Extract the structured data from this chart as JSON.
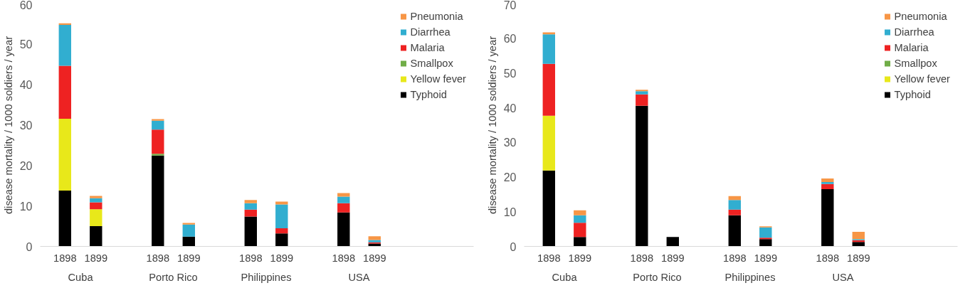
{
  "chart_data": [
    {
      "type": "bar",
      "stacked": true,
      "ylabel": "disease mortality / 1000 soldiers / year",
      "categories": [
        "1898",
        "1899",
        "1898",
        "1899",
        "1898",
        "1899",
        "1898",
        "1899"
      ],
      "annotations": [
        "Cuba",
        "Porto Rico",
        "Philippines",
        "USA"
      ],
      "ylim": [
        0,
        60
      ],
      "yticks": [
        0,
        10,
        20,
        30,
        40,
        50,
        60
      ],
      "legend": "top right",
      "series": [
        {
          "name": "Typhoid",
          "color": "#000000",
          "values": [
            13.8,
            5.0,
            22.5,
            2.4,
            7.4,
            3.2,
            8.4,
            0.7
          ]
        },
        {
          "name": "Yellow fever",
          "color": "#e8e81a",
          "values": [
            17.8,
            4.2,
            0,
            0,
            0,
            0,
            0,
            0
          ]
        },
        {
          "name": "Smallpox",
          "color": "#70ad47",
          "values": [
            0,
            0,
            0.4,
            0,
            0,
            0,
            0,
            0
          ]
        },
        {
          "name": "Malaria",
          "color": "#ee2222",
          "values": [
            13.1,
            1.7,
            6.0,
            0,
            1.7,
            1.3,
            2.3,
            0.3
          ]
        },
        {
          "name": "Diarrhea",
          "color": "#31aed0",
          "values": [
            10.1,
            1.0,
            2.2,
            3.0,
            1.6,
            5.9,
            1.6,
            0.6
          ]
        },
        {
          "name": "Pneumonia",
          "color": "#f79646",
          "values": [
            0.4,
            0.6,
            0.4,
            0.4,
            0.8,
            0.7,
            0.9,
            0.9
          ]
        }
      ]
    },
    {
      "type": "bar",
      "stacked": true,
      "ylabel": "disease mortality / 1000 soldiers / year",
      "categories": [
        "1898",
        "1899",
        "1898",
        "1899",
        "1898",
        "1899",
        "1898",
        "1899"
      ],
      "annotations": [
        "Cuba",
        "Porto Rico",
        "Philippines",
        "USA"
      ],
      "ylim": [
        0,
        70
      ],
      "yticks": [
        0,
        10,
        20,
        30,
        40,
        50,
        60,
        70
      ],
      "legend": "top right",
      "series": [
        {
          "name": "Typhoid",
          "color": "#000000",
          "values": [
            21.9,
            2.7,
            40.6,
            2.7,
            9.0,
            2.1,
            16.5,
            1.3
          ]
        },
        {
          "name": "Yellow fever",
          "color": "#e8e81a",
          "values": [
            15.8,
            0,
            0,
            0,
            0,
            0,
            0,
            0
          ]
        },
        {
          "name": "Smallpox",
          "color": "#70ad47",
          "values": [
            0,
            0,
            0,
            0,
            0,
            0,
            0,
            0
          ]
        },
        {
          "name": "Malaria",
          "color": "#ee2222",
          "values": [
            15.0,
            4.1,
            3.3,
            0,
            1.6,
            0.4,
            1.5,
            0.5
          ]
        },
        {
          "name": "Diarrhea",
          "color": "#31aed0",
          "values": [
            8.5,
            2.2,
            0.9,
            0,
            2.8,
            3.0,
            0.6,
            0.3
          ]
        },
        {
          "name": "Pneumonia",
          "color": "#f79646",
          "values": [
            0.6,
            1.4,
            0.4,
            0,
            1.1,
            0.3,
            1.0,
            2.1
          ]
        }
      ]
    }
  ]
}
